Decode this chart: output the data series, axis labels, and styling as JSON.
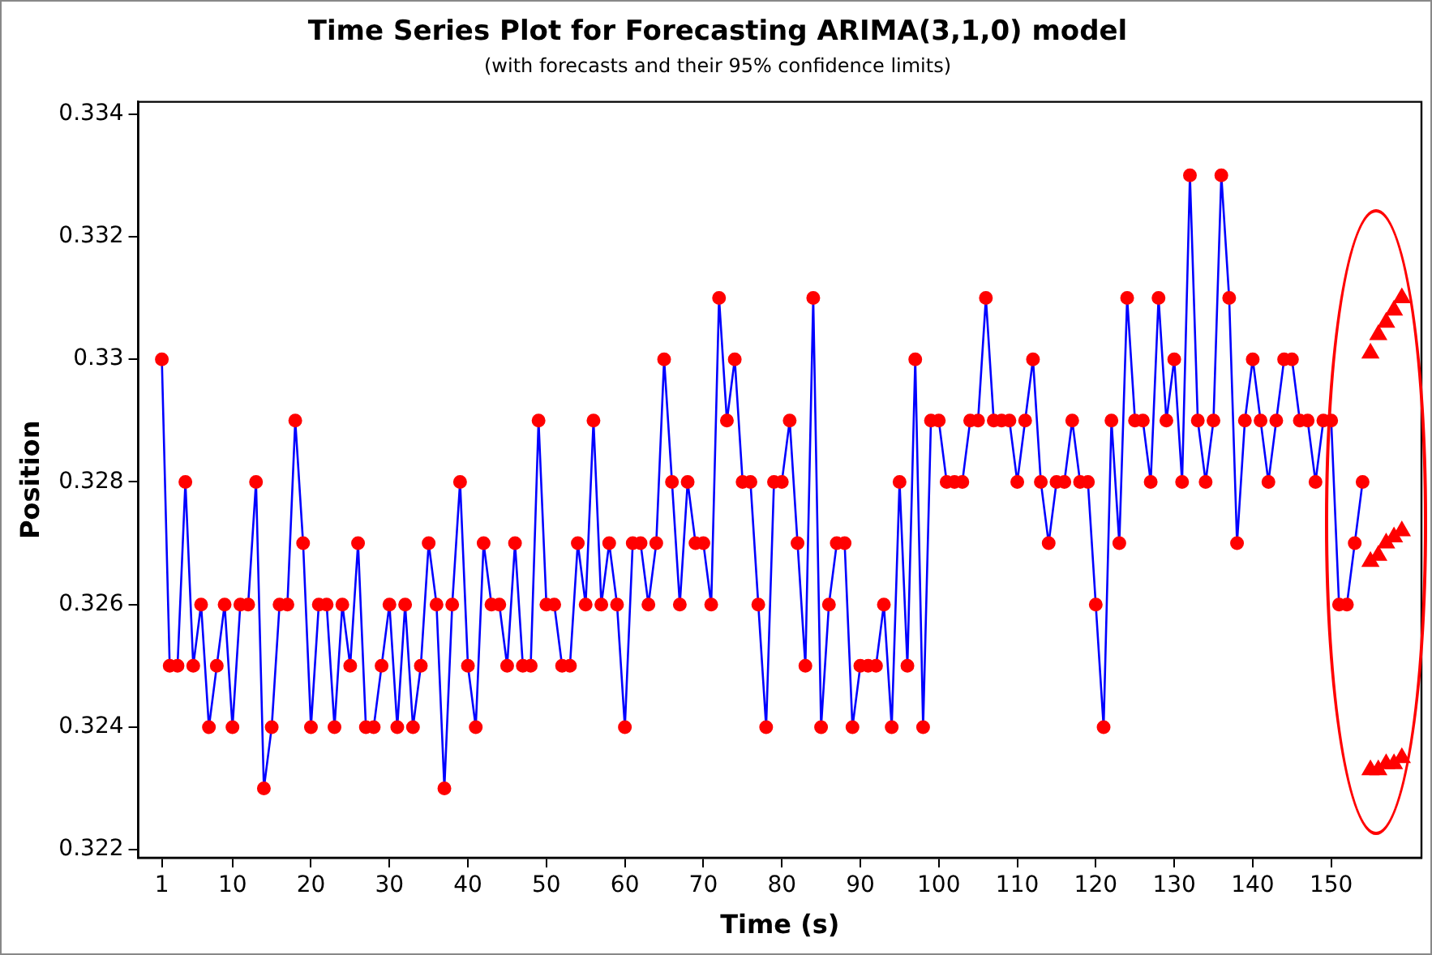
{
  "chart_data": {
    "type": "line",
    "title": "Time Series Plot for Forecasting ARIMA(3,1,0) model",
    "subtitle": "(with forecasts and their 95% confidence limits)",
    "xlabel": "Time (s)",
    "ylabel": "Position",
    "xlim": [
      -2,
      161.5
    ],
    "xticks": [
      1,
      10,
      20,
      30,
      40,
      50,
      60,
      70,
      80,
      90,
      100,
      110,
      120,
      130,
      140,
      150
    ],
    "ylim": [
      0.32187,
      0.3342
    ],
    "yticks": [
      0.322,
      0.324,
      0.326,
      0.328,
      0.33,
      0.332,
      0.334
    ],
    "grid": false,
    "legend": false,
    "series": [
      {
        "marker": "circle",
        "color": "#0000ff",
        "colors": [
          "#ff0000",
          "#ff0000",
          "#ff0000",
          "#ff0000",
          "#ff0000",
          "#ff0000",
          "#ff0000",
          "#ff0000",
          "#ff0000",
          "#ff0000",
          "#ff0000",
          "#ff0000",
          "#ff0000",
          "#ff0000",
          "#ff0000",
          "#ff0000",
          "#ff0000",
          "#ff0000",
          "#ff0000",
          "#ff0000",
          "#ff0000",
          "#ff0000",
          "#ff0000",
          "#ff0000",
          "#ff0000",
          "#ff0000",
          "#ff0000",
          "#ff0000",
          "#ff0000",
          "#ff0000",
          "#ff0000",
          "#ff0000",
          "#ff0000",
          "#ff0000",
          "#ff0000",
          "#ff0000",
          "#ff0000",
          "#ff0000",
          "#ff0000",
          "#ff0000",
          "#ff0000",
          "#ff0000",
          "#ff0000",
          "#ff0000",
          "#ff0000",
          "#ff0000",
          "#ff0000",
          "#ff0000",
          "#ff0000",
          "#ff0000",
          "#ff0000",
          "#ff0000",
          "#ff0000",
          "#ff0000",
          "#ff0000",
          "#ff0000",
          "#ff0000",
          "#ff0000",
          "#ff0000",
          "#ff0000",
          "#ff0000",
          "#ff0000",
          "#ff0000",
          "#ff0000",
          "#ff0000",
          "#ff0000",
          "#ff0000",
          "#ff0000",
          "#ff0000",
          "#ff0000",
          "#ff0000",
          "#ff0000",
          "#ff0000",
          "#ff0000",
          "#ff0000",
          "#ff0000",
          "#ff0000",
          "#ff0000",
          "#ff0000",
          "#ff0000",
          "#ff0000",
          "#ff0000",
          "#ff0000",
          "#ff0000",
          "#ff0000",
          "#ff0000",
          "#ff0000",
          "#ff0000",
          "#ff0000",
          "#ff0000",
          "#ff0000",
          "#ff0000",
          "#ff0000",
          "#ff0000",
          "#ff0000",
          "#ff0000",
          "#ff0000",
          "#ff0000",
          "#ff0000",
          "#ff0000",
          "#ff0000",
          "#ff0000",
          "#ff0000",
          "#ff0000",
          "#ff0000",
          "#ff0000",
          "#ff0000",
          "#ff0000",
          "#ff0000",
          "#ff0000",
          "#ff0000",
          "#ff0000",
          "#ff0000",
          "#ff0000",
          "#ff0000",
          "#ff0000",
          "#ff0000",
          "#ff0000",
          "#ff0000",
          "#ff0000",
          "#ff0000",
          "#ff0000",
          "#ff0000",
          "#ff0000",
          "#ff0000",
          "#ff0000",
          "#ff0000",
          "#ff0000",
          "#ff0000",
          "#ff0000",
          "#ff0000",
          "#ff0000",
          "#ff0000",
          "#ff0000",
          "#ff0000",
          "#ff0000",
          "#ff0000",
          "#ff0000",
          "#ff0000",
          "#ff0000",
          "#ff0000",
          "#ff0000",
          "#ff0000",
          "#ff0000",
          "#ff0000",
          "#ff0000",
          "#ff0000",
          "#ff0000",
          "#ff0000",
          "#ff0000",
          "#ff0000",
          "#ff0000",
          "#ff0000",
          "#ff0000"
        ],
        "x": [
          1,
          2,
          3,
          4,
          5,
          6,
          7,
          8,
          9,
          10,
          11,
          12,
          13,
          14,
          15,
          16,
          17,
          18,
          19,
          20,
          21,
          22,
          23,
          24,
          25,
          26,
          27,
          28,
          29,
          30,
          31,
          32,
          33,
          34,
          35,
          36,
          37,
          38,
          39,
          40,
          41,
          42,
          43,
          44,
          45,
          46,
          47,
          48,
          49,
          50,
          51,
          52,
          53,
          54,
          55,
          56,
          57,
          58,
          59,
          60,
          61,
          62,
          63,
          64,
          65,
          66,
          67,
          68,
          69,
          70,
          71,
          72,
          73,
          74,
          75,
          76,
          77,
          78,
          79,
          80,
          81,
          82,
          83,
          84,
          85,
          86,
          87,
          88,
          89,
          90,
          91,
          92,
          93,
          94,
          95,
          96,
          97,
          98,
          99,
          100,
          101,
          102,
          103,
          104,
          105,
          106,
          107,
          108,
          109,
          110,
          111,
          112,
          113,
          114,
          115,
          116,
          117,
          118,
          119,
          120,
          121,
          122,
          123,
          124,
          125,
          126,
          127,
          128,
          129,
          130,
          131,
          132,
          133,
          134,
          135,
          136,
          137,
          138,
          139,
          140,
          141,
          142,
          143,
          144,
          145,
          146,
          147,
          148,
          149,
          150,
          151,
          152,
          153,
          154
        ],
        "values": [
          0.33,
          0.325,
          0.325,
          0.328,
          0.325,
          0.326,
          0.324,
          0.325,
          0.326,
          0.324,
          0.326,
          0.326,
          0.328,
          0.323,
          0.324,
          0.326,
          0.326,
          0.329,
          0.327,
          0.324,
          0.326,
          0.326,
          0.324,
          0.326,
          0.325,
          0.327,
          0.324,
          0.324,
          0.325,
          0.326,
          0.324,
          0.326,
          0.324,
          0.325,
          0.327,
          0.326,
          0.323,
          0.326,
          0.328,
          0.325,
          0.324,
          0.327,
          0.326,
          0.326,
          0.325,
          0.327,
          0.325,
          0.325,
          0.329,
          0.326,
          0.326,
          0.325,
          0.325,
          0.327,
          0.326,
          0.329,
          0.326,
          0.327,
          0.326,
          0.324,
          0.327,
          0.327,
          0.326,
          0.327,
          0.33,
          0.328,
          0.326,
          0.328,
          0.327,
          0.327,
          0.326,
          0.331,
          0.329,
          0.33,
          0.328,
          0.328,
          0.326,
          0.324,
          0.328,
          0.328,
          0.329,
          0.327,
          0.325,
          0.331,
          0.324,
          0.326,
          0.327,
          0.327,
          0.324,
          0.325,
          0.325,
          0.325,
          0.326,
          0.324,
          0.328,
          0.325,
          0.33,
          0.324,
          0.329,
          0.329,
          0.328,
          0.328,
          0.328,
          0.329,
          0.329,
          0.331,
          0.329,
          0.329,
          0.329,
          0.328,
          0.329,
          0.33,
          0.328,
          0.327,
          0.328,
          0.328,
          0.329,
          0.328,
          0.328,
          0.326,
          0.324,
          0.329,
          0.327,
          0.331,
          0.329,
          0.329,
          0.328,
          0.331,
          0.329,
          0.33,
          0.328,
          0.333,
          0.329,
          0.328,
          0.329,
          0.333,
          0.331,
          0.327,
          0.329,
          0.33,
          0.329,
          0.328,
          0.329,
          0.33,
          0.33,
          0.329,
          0.329,
          0.328,
          0.329,
          0.329,
          0.326,
          0.326,
          0.327,
          0.328
        ]
      },
      {
        "type": "scatter",
        "marker": "triangle",
        "color": "#ff0000",
        "x": [
          155,
          156,
          157,
          158,
          159
        ],
        "values": [
          0.3301,
          0.3304,
          0.3306,
          0.3308,
          0.331
        ]
      },
      {
        "type": "scatter",
        "marker": "triangle",
        "color": "#ff0000",
        "x": [
          155,
          156,
          157,
          158,
          159
        ],
        "values": [
          0.3267,
          0.3268,
          0.327,
          0.3271,
          0.3272
        ]
      },
      {
        "type": "scatter",
        "marker": "triangle",
        "color": "#ff0000",
        "x": [
          155,
          156,
          157,
          158,
          159
        ],
        "values": [
          0.3233,
          0.3233,
          0.3234,
          0.3234,
          0.3235
        ]
      }
    ]
  }
}
